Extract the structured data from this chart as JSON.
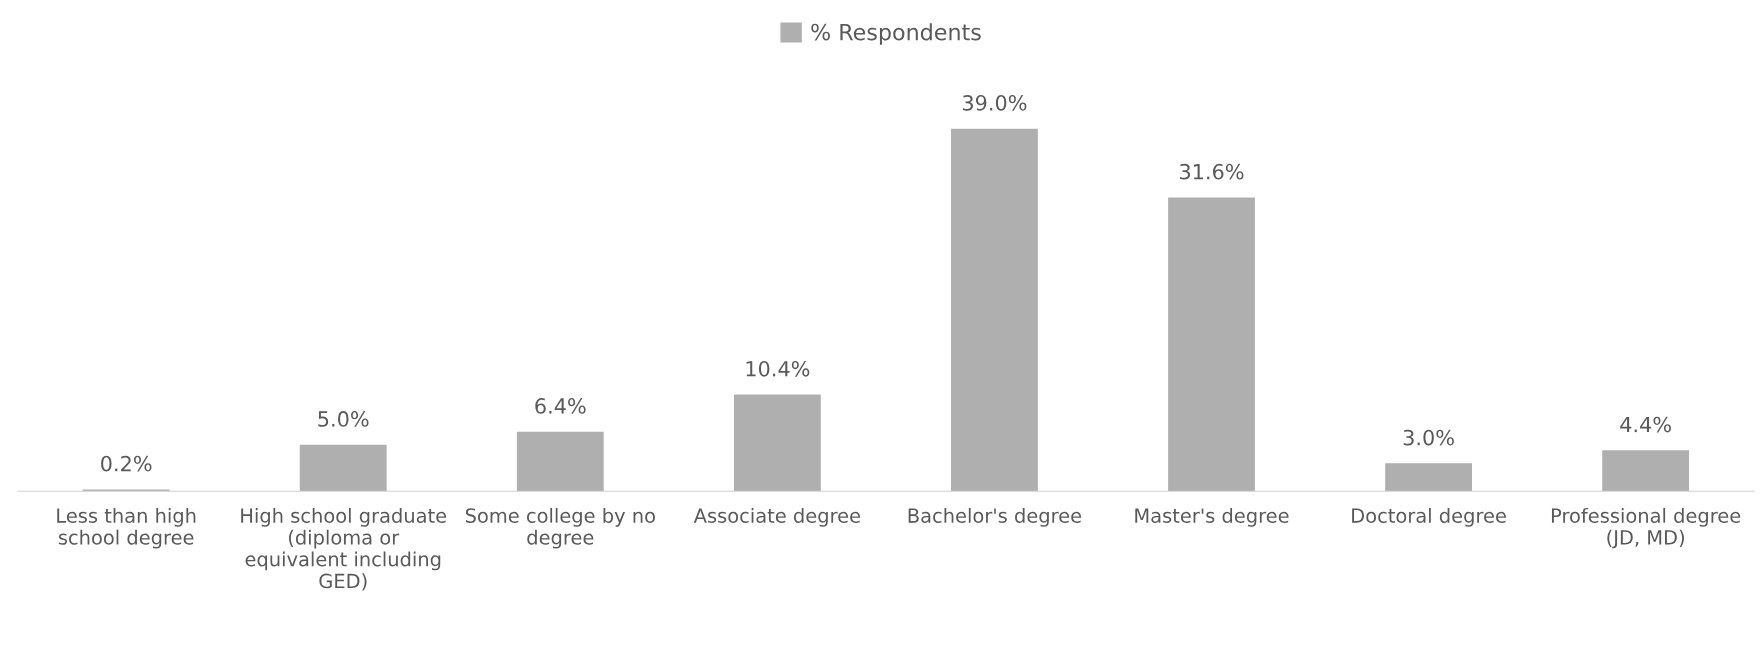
{
  "chart_data": {
    "type": "bar",
    "categories": [
      "Less than high school degree",
      "High school graduate (diploma or equivalent including GED)",
      "Some college by no degree",
      "Associate degree",
      "Bachelor's degree",
      "Master's degree",
      "Doctoral degree",
      "Professional degree (JD, MD)"
    ],
    "series": [
      {
        "name": "% Respondents",
        "color": "#afafaf",
        "values": [
          0.2,
          5.0,
          6.4,
          10.4,
          39.0,
          31.6,
          3.0,
          4.4
        ],
        "value_labels": [
          "0.2%",
          "5.0%",
          "6.4%",
          "10.4%",
          "39.0%",
          "31.6%",
          "3.0%",
          "4.4%"
        ]
      }
    ],
    "legend": "top",
    "grid": false
  }
}
